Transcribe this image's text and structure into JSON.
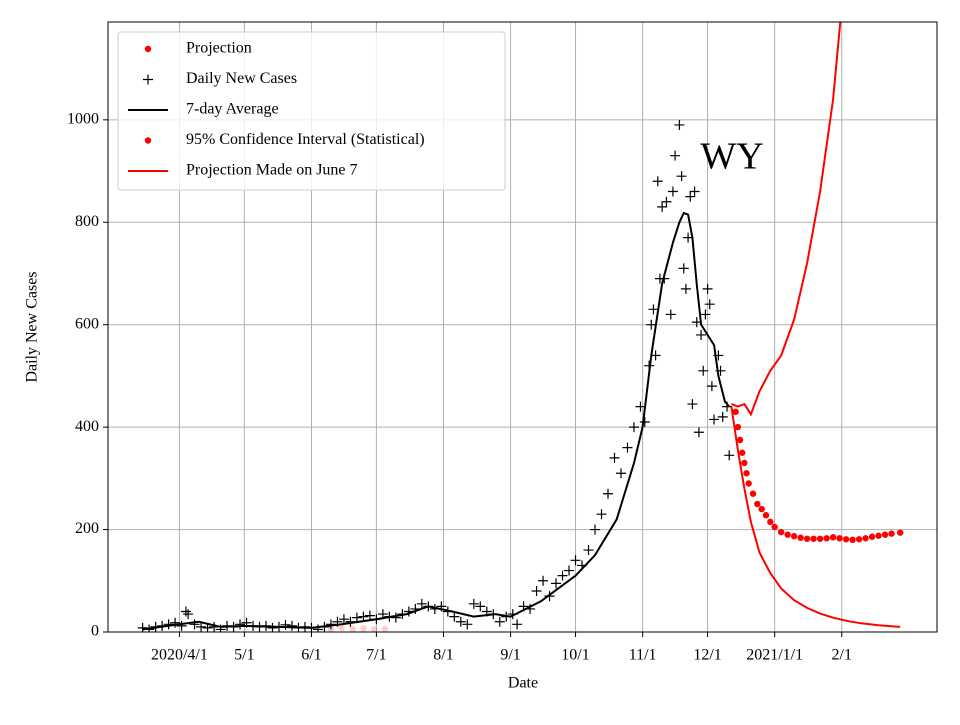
{
  "chart_data": {
    "type": "line",
    "xlabel": "Date",
    "ylabel": "Daily New Cases",
    "annotation": "WY",
    "xlim": [
      "2020-02-28",
      "2021-03-17"
    ],
    "ylim": [
      0,
      1191
    ],
    "xticks": [
      {
        "value": "2020-04-01",
        "label": "2020/4/1"
      },
      {
        "value": "2020-05-01",
        "label": "5/1"
      },
      {
        "value": "2020-06-01",
        "label": "6/1"
      },
      {
        "value": "2020-07-01",
        "label": "7/1"
      },
      {
        "value": "2020-08-01",
        "label": "8/1"
      },
      {
        "value": "2020-09-01",
        "label": "9/1"
      },
      {
        "value": "2020-10-01",
        "label": "10/1"
      },
      {
        "value": "2020-11-01",
        "label": "11/1"
      },
      {
        "value": "2020-12-01",
        "label": "12/1"
      },
      {
        "value": "2021-01-01",
        "label": "2021/1/1"
      },
      {
        "value": "2021-02-01",
        "label": "2/1"
      }
    ],
    "yticks": [
      0,
      200,
      400,
      600,
      800,
      1000
    ],
    "grid": true,
    "legend": "upper left",
    "series": [
      {
        "name": "Projection",
        "color": "#ff0000",
        "marker": "dot",
        "x": [
          "2020-12-14",
          "2020-12-15",
          "2020-12-16",
          "2020-12-17",
          "2020-12-18",
          "2020-12-19",
          "2020-12-20",
          "2020-12-22",
          "2020-12-24",
          "2020-12-26",
          "2020-12-28",
          "2020-12-30",
          "2021-01-01",
          "2021-01-04",
          "2021-01-07",
          "2021-01-10",
          "2021-01-13",
          "2021-01-16",
          "2021-01-19",
          "2021-01-22",
          "2021-01-25",
          "2021-01-28",
          "2021-01-31",
          "2021-02-03",
          "2021-02-06",
          "2021-02-09",
          "2021-02-12",
          "2021-02-15",
          "2021-02-18",
          "2021-02-21",
          "2021-02-24",
          "2021-02-28"
        ],
        "values": [
          430,
          400,
          375,
          350,
          330,
          310,
          290,
          270,
          250,
          240,
          228,
          215,
          205,
          195,
          190,
          187,
          184,
          182,
          182,
          182,
          183,
          185,
          183,
          181,
          180,
          181,
          183,
          186,
          188,
          190,
          192,
          194
        ]
      },
      {
        "name": "Daily New Cases",
        "color": "#000000",
        "marker": "plus",
        "x": [
          "2020-03-15",
          "2020-03-18",
          "2020-03-21",
          "2020-03-24",
          "2020-03-27",
          "2020-03-30",
          "2020-04-02",
          "2020-04-04",
          "2020-04-05",
          "2020-04-08",
          "2020-04-11",
          "2020-04-14",
          "2020-04-17",
          "2020-04-20",
          "2020-04-23",
          "2020-04-26",
          "2020-04-29",
          "2020-05-02",
          "2020-05-05",
          "2020-05-08",
          "2020-05-11",
          "2020-05-14",
          "2020-05-17",
          "2020-05-20",
          "2020-05-23",
          "2020-05-26",
          "2020-05-29",
          "2020-06-01",
          "2020-06-04",
          "2020-06-07",
          "2020-06-10",
          "2020-06-13",
          "2020-06-16",
          "2020-06-19",
          "2020-06-22",
          "2020-06-25",
          "2020-06-28",
          "2020-07-01",
          "2020-07-04",
          "2020-07-07",
          "2020-07-10",
          "2020-07-13",
          "2020-07-16",
          "2020-07-19",
          "2020-07-22",
          "2020-07-25",
          "2020-07-28",
          "2020-07-31",
          "2020-08-03",
          "2020-08-06",
          "2020-08-09",
          "2020-08-12",
          "2020-08-15",
          "2020-08-18",
          "2020-08-21",
          "2020-08-24",
          "2020-08-27",
          "2020-08-30",
          "2020-09-02",
          "2020-09-04",
          "2020-09-07",
          "2020-09-10",
          "2020-09-13",
          "2020-09-16",
          "2020-09-19",
          "2020-09-22",
          "2020-09-25",
          "2020-09-28",
          "2020-10-01",
          "2020-10-04",
          "2020-10-07",
          "2020-10-10",
          "2020-10-13",
          "2020-10-16",
          "2020-10-19",
          "2020-10-22",
          "2020-10-25",
          "2020-10-28",
          "2020-10-31",
          "2020-11-02",
          "2020-11-04",
          "2020-11-05",
          "2020-11-06",
          "2020-11-07",
          "2020-11-08",
          "2020-11-09",
          "2020-11-10",
          "2020-11-11",
          "2020-11-12",
          "2020-11-14",
          "2020-11-15",
          "2020-11-16",
          "2020-11-18",
          "2020-11-19",
          "2020-11-20",
          "2020-11-21",
          "2020-11-22",
          "2020-11-23",
          "2020-11-24",
          "2020-11-25",
          "2020-11-26",
          "2020-11-27",
          "2020-11-28",
          "2020-11-29",
          "2020-11-30",
          "2020-12-01",
          "2020-12-02",
          "2020-12-03",
          "2020-12-04",
          "2020-12-06",
          "2020-12-07",
          "2020-12-08",
          "2020-12-10",
          "2020-12-11"
        ],
        "values": [
          8,
          5,
          10,
          12,
          15,
          18,
          12,
          40,
          35,
          15,
          10,
          8,
          10,
          5,
          12,
          10,
          15,
          18,
          12,
          10,
          12,
          8,
          10,
          14,
          12,
          8,
          10,
          8,
          5,
          10,
          15,
          20,
          25,
          20,
          28,
          30,
          32,
          25,
          35,
          30,
          28,
          35,
          40,
          45,
          55,
          50,
          45,
          50,
          40,
          30,
          20,
          15,
          55,
          50,
          40,
          35,
          20,
          30,
          35,
          15,
          50,
          45,
          80,
          100,
          70,
          95,
          110,
          120,
          140,
          130,
          160,
          200,
          230,
          270,
          340,
          310,
          360,
          400,
          440,
          410,
          520,
          600,
          630,
          540,
          880,
          690,
          830,
          690,
          840,
          620,
          860,
          930,
          990,
          890,
          710,
          670,
          770,
          850,
          445,
          860,
          605,
          390,
          580,
          510,
          620,
          670,
          640,
          480,
          415,
          540,
          510,
          420,
          440,
          345
        ]
      },
      {
        "name": "7-day Average",
        "color": "#000000",
        "marker": "line",
        "x": [
          "2020-03-15",
          "2020-04-01",
          "2020-04-10",
          "2020-04-20",
          "2020-05-01",
          "2020-06-01",
          "2020-06-15",
          "2020-07-01",
          "2020-07-15",
          "2020-07-25",
          "2020-08-05",
          "2020-08-15",
          "2020-08-25",
          "2020-09-01",
          "2020-09-15",
          "2020-10-01",
          "2020-10-10",
          "2020-10-20",
          "2020-10-28",
          "2020-11-01",
          "2020-11-05",
          "2020-11-10",
          "2020-11-15",
          "2020-11-18",
          "2020-11-20",
          "2020-11-22",
          "2020-11-24",
          "2020-11-26",
          "2020-11-28",
          "2020-12-01",
          "2020-12-04",
          "2020-12-06",
          "2020-12-09",
          "2020-12-11"
        ],
        "values": [
          5,
          15,
          20,
          10,
          12,
          8,
          15,
          25,
          35,
          50,
          40,
          30,
          35,
          30,
          60,
          110,
          150,
          220,
          330,
          400,
          540,
          680,
          760,
          800,
          818,
          815,
          770,
          680,
          600,
          580,
          560,
          500,
          450,
          440
        ]
      },
      {
        "name": "95% Confidence Interval (Statistical)",
        "color": "#ff0000",
        "marker": "dot",
        "x": [
          "2020-12-12",
          "2020-12-15",
          "2020-12-18",
          "2020-12-21",
          "2020-12-25",
          "2020-12-30",
          "2021-01-04",
          "2021-01-10",
          "2021-01-16",
          "2021-01-22",
          "2021-01-28",
          "2021-02-04",
          "2021-02-10",
          "2021-02-18",
          "2021-02-28"
        ],
        "lower": [
          440,
          355,
          280,
          215,
          155,
          115,
          85,
          62,
          47,
          36,
          28,
          21,
          17,
          13,
          10
        ],
        "upper": [
          445,
          440,
          445,
          425,
          470,
          510,
          540,
          610,
          720,
          860,
          1040,
          1360,
          null,
          null,
          null
        ]
      },
      {
        "name": "Projection Made on June 7",
        "color": "#ff0000",
        "marker": "line",
        "alpha": 0.2,
        "x": [
          "2020-06-10",
          "2020-06-15",
          "2020-06-20",
          "2020-06-25",
          "2020-06-30",
          "2020-07-05"
        ],
        "values": [
          5,
          8,
          6,
          7,
          5,
          6
        ]
      }
    ]
  }
}
